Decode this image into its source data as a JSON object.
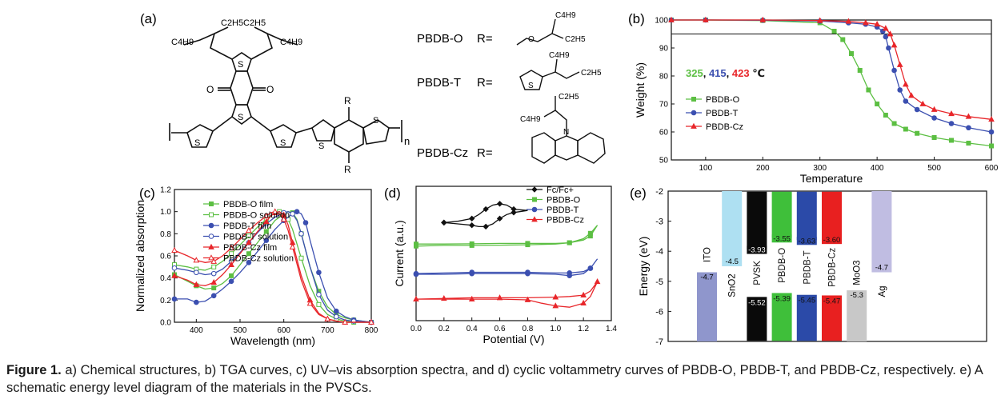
{
  "figure": {
    "caption_label": "Figure 1.",
    "caption_text": " a) Chemical structures, b) TGA curves, c) UV–vis absorption spectra, and d) cyclic voltammetry curves of PBDB-O, PBDB-T, and PBDB-Cz, respectively. e) A schematic energy level diagram of the materials in the PVSCs."
  },
  "colors": {
    "green": "#5cbf43",
    "blue": "#3b4fb0",
    "red": "#e8262a",
    "black": "#111111"
  },
  "panel_a": {
    "label": "(a)",
    "substituent_labels": [
      "C4H9",
      "C2H5",
      "C2H5",
      "C4H9"
    ],
    "atoms": {
      "S": "S",
      "O": "O",
      "R": "R",
      "n": "n",
      "N": "N"
    },
    "side_chains": [
      {
        "name": "PBDB-O",
        "r": "R=",
        "labels": [
          "C4H9",
          "C2H5"
        ]
      },
      {
        "name": "PBDB-T",
        "r": "R=",
        "labels": [
          "C4H9",
          "C2H5"
        ]
      },
      {
        "name": "PBDB-Cz",
        "r": "R=",
        "labels": [
          "C2H5",
          "C4H9"
        ]
      }
    ]
  },
  "chart_data": [
    {
      "panel": "(b)",
      "type": "line",
      "xlabel": "Temperature",
      "ylabel": "Weight (%)",
      "xlim": [
        40,
        600
      ],
      "ylim": [
        50,
        100
      ],
      "xticks": [
        100,
        200,
        300,
        400,
        500,
        600
      ],
      "xtick_labels": [
        "100",
        "200",
        "300",
        "400",
        "500",
        "600"
      ],
      "yticks": [
        50,
        60,
        70,
        80,
        90,
        100
      ],
      "ytick_labels": [
        "50",
        "60",
        "70",
        "80",
        "90",
        "100"
      ],
      "hline": 95,
      "annotation": {
        "parts": [
          "325",
          ", ",
          "415",
          ", ",
          "423",
          " ℃"
        ]
      },
      "legend_position": "center-left",
      "series": [
        {
          "name": "PBDB-O",
          "color": "#5cbf43",
          "marker": "square",
          "x": [
            40,
            100,
            200,
            300,
            325,
            340,
            355,
            370,
            385,
            400,
            415,
            430,
            450,
            470,
            500,
            530,
            560,
            600
          ],
          "y": [
            100,
            100,
            99.8,
            99,
            96,
            93,
            88,
            82,
            75,
            70,
            66,
            63,
            61,
            59.5,
            58,
            57,
            56,
            55
          ]
        },
        {
          "name": "PBDB-T",
          "color": "#3b4fb0",
          "marker": "circle",
          "x": [
            40,
            100,
            200,
            300,
            350,
            380,
            400,
            410,
            415,
            420,
            430,
            440,
            450,
            470,
            500,
            530,
            560,
            600
          ],
          "y": [
            100,
            100,
            99.9,
            99.6,
            99,
            98.5,
            97.5,
            96,
            94,
            90,
            82,
            75,
            71,
            68,
            65,
            63,
            61.5,
            60
          ]
        },
        {
          "name": "PBDB-Cz",
          "color": "#e8262a",
          "marker": "triangle",
          "x": [
            40,
            100,
            200,
            300,
            350,
            380,
            400,
            415,
            423,
            430,
            440,
            450,
            460,
            480,
            500,
            530,
            560,
            600
          ],
          "y": [
            100,
            100,
            100,
            99.8,
            99.5,
            99,
            98.5,
            97,
            95,
            91,
            84,
            77,
            73,
            70,
            68,
            66.5,
            65.5,
            64.5
          ]
        }
      ]
    },
    {
      "panel": "(c)",
      "type": "line",
      "xlabel": "Wavelength (nm)",
      "ylabel": "Normalized absorption",
      "xlim": [
        350,
        800
      ],
      "ylim": [
        0.0,
        1.2
      ],
      "xticks": [
        400,
        500,
        600,
        700,
        800
      ],
      "xtick_labels": [
        "400",
        "500",
        "600",
        "700",
        "800"
      ],
      "yticks": [
        0.0,
        0.2,
        0.4,
        0.6,
        0.8,
        1.0,
        1.2
      ],
      "ytick_labels": [
        "0.0",
        "0.2",
        "0.4",
        "0.6",
        "0.8",
        "1.0",
        "1.2"
      ],
      "legend_position": "top-left",
      "series": [
        {
          "name": "PBDB-O film",
          "color": "#5cbf43",
          "marker": "square",
          "filled": true,
          "x": [
            350,
            380,
            400,
            420,
            440,
            460,
            480,
            500,
            520,
            540,
            560,
            580,
            600,
            610,
            620,
            630,
            640,
            660,
            680,
            700,
            720,
            740,
            760,
            780,
            800
          ],
          "y": [
            0.43,
            0.37,
            0.33,
            0.3,
            0.31,
            0.35,
            0.42,
            0.52,
            0.62,
            0.72,
            0.82,
            0.92,
            0.98,
            1.0,
            0.99,
            0.93,
            0.8,
            0.5,
            0.28,
            0.14,
            0.07,
            0.04,
            0.02,
            0.01,
            0.0
          ]
        },
        {
          "name": "PBDB-O solution",
          "color": "#5cbf43",
          "marker": "square",
          "filled": false,
          "x": [
            350,
            380,
            400,
            420,
            440,
            460,
            480,
            500,
            520,
            540,
            560,
            580,
            590,
            600,
            610,
            620,
            640,
            660,
            680,
            700,
            720,
            740,
            760,
            780,
            800
          ],
          "y": [
            0.52,
            0.5,
            0.48,
            0.47,
            0.5,
            0.55,
            0.62,
            0.7,
            0.78,
            0.86,
            0.93,
            0.99,
            1.0,
            0.98,
            0.93,
            0.84,
            0.58,
            0.33,
            0.16,
            0.07,
            0.03,
            0.01,
            0.0,
            0.0,
            0.0
          ]
        },
        {
          "name": "PBDB-T film",
          "color": "#3b4fb0",
          "marker": "circle",
          "filled": true,
          "x": [
            350,
            380,
            400,
            420,
            440,
            460,
            480,
            500,
            520,
            540,
            560,
            580,
            600,
            620,
            630,
            640,
            650,
            660,
            680,
            700,
            720,
            740,
            760,
            780,
            800
          ],
          "y": [
            0.21,
            0.21,
            0.18,
            0.19,
            0.24,
            0.3,
            0.37,
            0.45,
            0.54,
            0.64,
            0.74,
            0.84,
            0.92,
            0.98,
            1.0,
            0.98,
            0.9,
            0.74,
            0.45,
            0.22,
            0.1,
            0.05,
            0.02,
            0.01,
            0.0
          ]
        },
        {
          "name": "PBDB-T solution",
          "color": "#3b4fb0",
          "marker": "circle",
          "filled": false,
          "x": [
            350,
            380,
            400,
            420,
            440,
            460,
            480,
            500,
            520,
            540,
            560,
            580,
            600,
            610,
            620,
            630,
            640,
            660,
            680,
            700,
            720,
            740,
            760,
            780,
            800
          ],
          "y": [
            0.49,
            0.47,
            0.45,
            0.43,
            0.44,
            0.48,
            0.55,
            0.63,
            0.72,
            0.81,
            0.89,
            0.95,
            0.99,
            1.0,
            0.98,
            0.92,
            0.8,
            0.5,
            0.25,
            0.11,
            0.05,
            0.02,
            0.01,
            0.0,
            0.0
          ]
        },
        {
          "name": "PBDB-Cz film",
          "color": "#e8262a",
          "marker": "triangle",
          "filled": true,
          "x": [
            350,
            380,
            400,
            420,
            440,
            460,
            480,
            500,
            520,
            540,
            560,
            570,
            580,
            590,
            600,
            610,
            620,
            640,
            660,
            680,
            700,
            720,
            740,
            760,
            800
          ],
          "y": [
            0.42,
            0.38,
            0.34,
            0.33,
            0.36,
            0.43,
            0.52,
            0.62,
            0.72,
            0.82,
            0.91,
            0.96,
            0.99,
            1.0,
            0.97,
            0.88,
            0.72,
            0.42,
            0.2,
            0.08,
            0.03,
            0.01,
            0.0,
            0.0,
            0.0
          ]
        },
        {
          "name": "PBDB-Cz solution",
          "color": "#e8262a",
          "marker": "triangle",
          "filled": false,
          "x": [
            350,
            380,
            400,
            420,
            440,
            460,
            480,
            500,
            520,
            540,
            560,
            570,
            580,
            590,
            600,
            610,
            620,
            640,
            660,
            680,
            700,
            720,
            740,
            760,
            800
          ],
          "y": [
            0.65,
            0.6,
            0.56,
            0.54,
            0.55,
            0.6,
            0.67,
            0.75,
            0.83,
            0.9,
            0.96,
            0.99,
            1.0,
            0.98,
            0.93,
            0.83,
            0.68,
            0.38,
            0.17,
            0.07,
            0.03,
            0.01,
            0.0,
            0.0,
            0.0
          ]
        }
      ]
    },
    {
      "panel": "(d)",
      "type": "line",
      "xlabel": "Potential (V)",
      "ylabel": "Current (a.u.)",
      "xlim": [
        0.0,
        1.4
      ],
      "ylim": [
        0,
        10
      ],
      "xticks": [
        0.0,
        0.2,
        0.4,
        0.6,
        0.8,
        1.0,
        1.2,
        1.4
      ],
      "xtick_labels": [
        "0.0",
        "0.2",
        "0.4",
        "0.6",
        "0.8",
        "1.0",
        "1.2",
        "1.4"
      ],
      "legend_position": "top-right",
      "series": [
        {
          "name": "Fc/Fc+",
          "color": "#111111",
          "marker": "diamond",
          "x": [
            0.2,
            0.3,
            0.4,
            0.45,
            0.5,
            0.55,
            0.6,
            0.65,
            0.7,
            0.8,
            0.7,
            0.65,
            0.6,
            0.55,
            0.5,
            0.45,
            0.4,
            0.3,
            0.2
          ],
          "y": [
            7.3,
            7.4,
            7.6,
            7.9,
            8.3,
            8.6,
            8.7,
            8.6,
            8.3,
            8.2,
            8.05,
            7.9,
            7.6,
            7.2,
            7.0,
            7.0,
            7.1,
            7.2,
            7.3
          ]
        },
        {
          "name": "PBDB-O",
          "color": "#5cbf43",
          "marker": "square",
          "x": [
            0.0,
            0.2,
            0.4,
            0.6,
            0.8,
            1.0,
            1.1,
            1.2,
            1.25,
            1.3,
            1.25,
            1.2,
            1.1,
            1.0,
            0.8,
            0.6,
            0.4,
            0.2,
            0.0
          ],
          "y": [
            5.55,
            5.6,
            5.6,
            5.62,
            5.65,
            5.7,
            5.8,
            6.1,
            6.5,
            7.1,
            6.3,
            6.0,
            5.8,
            5.75,
            5.75,
            5.75,
            5.72,
            5.7,
            5.7
          ]
        },
        {
          "name": "PBDB-T",
          "color": "#3b4fb0",
          "marker": "circle",
          "x": [
            0.0,
            0.2,
            0.4,
            0.6,
            0.8,
            1.0,
            1.1,
            1.2,
            1.25,
            1.3,
            1.25,
            1.2,
            1.1,
            1.0,
            0.8,
            0.6,
            0.4,
            0.2,
            0.0
          ],
          "y": [
            3.45,
            3.45,
            3.5,
            3.5,
            3.5,
            3.45,
            3.35,
            3.5,
            3.9,
            4.6,
            3.9,
            3.65,
            3.55,
            3.55,
            3.6,
            3.6,
            3.6,
            3.55,
            3.5
          ]
        },
        {
          "name": "PBDB-Cz",
          "color": "#e8262a",
          "marker": "triangle",
          "x": [
            0.0,
            0.2,
            0.4,
            0.6,
            0.8,
            0.9,
            1.0,
            1.1,
            1.2,
            1.25,
            1.3,
            1.25,
            1.2,
            1.1,
            1.0,
            0.8,
            0.6,
            0.4,
            0.2,
            0.0
          ],
          "y": [
            1.6,
            1.6,
            1.6,
            1.6,
            1.55,
            1.3,
            1.1,
            1.0,
            1.3,
            1.8,
            2.9,
            2.2,
            1.9,
            1.8,
            1.75,
            1.7,
            1.7,
            1.7,
            1.65,
            1.6
          ]
        }
      ]
    },
    {
      "panel": "(e)",
      "type": "bar",
      "ylabel": "Energy (eV)",
      "ylim": [
        -7,
        -2
      ],
      "yticks": [
        -2,
        -3,
        -4,
        -5,
        -6,
        -7
      ],
      "ytick_labels": [
        "-2",
        "-3",
        "-4",
        "-5",
        "-6",
        "-7"
      ],
      "levels": [
        {
          "name": "ITO",
          "color": "#8f96cc",
          "top": -4.7,
          "bottom": -7,
          "top_label": "-4.7",
          "bottom_label": "",
          "dark": false,
          "label_pos": "top"
        },
        {
          "name": "SnO2",
          "color": "#aee0f2",
          "top": -2.0,
          "bottom": -4.5,
          "top_label": "",
          "bottom_label": "-4.5",
          "dark": false,
          "label_pos": "bottom"
        },
        {
          "name": "PVSK",
          "color": "#0a0a0a",
          "top": -2.0,
          "bottom": -7,
          "top_label": "-3.93",
          "bottom_label": "-5.52",
          "dark": true,
          "gap": [
            -3.93,
            -5.52
          ]
        },
        {
          "name": "PBDB-O",
          "color": "#3fbf3a",
          "top": -2.0,
          "bottom": -7,
          "top_label": "-3.55",
          "bottom_label": "-5.39",
          "dark": false,
          "gap": [
            -3.55,
            -5.39
          ]
        },
        {
          "name": "PBDB-T",
          "color": "#2b4aa8",
          "top": -2.0,
          "bottom": -7,
          "top_label": "-3.63",
          "bottom_label": "-5.45",
          "dark": false,
          "gap": [
            -3.63,
            -5.45
          ]
        },
        {
          "name": "PBDB-Cz",
          "color": "#e82020",
          "top": -2.0,
          "bottom": -7,
          "top_label": "-3.60",
          "bottom_label": "-5.47",
          "dark": false,
          "gap": [
            -3.6,
            -5.47
          ]
        },
        {
          "name": "MoO3",
          "color": "#c8c8c8",
          "top": -5.3,
          "bottom": -7,
          "top_label": "-5.3",
          "bottom_label": "",
          "dark": false,
          "label_pos": "top"
        },
        {
          "name": "Ag",
          "color": "#c0bde2",
          "top": -2.0,
          "bottom": -4.7,
          "top_label": "",
          "bottom_label": "-4.7",
          "dark": false,
          "label_pos": "bottom"
        }
      ]
    }
  ]
}
